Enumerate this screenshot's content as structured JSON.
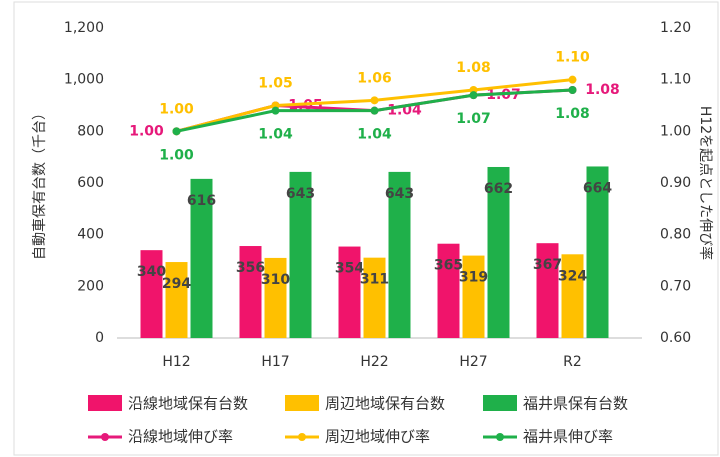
{
  "chart_data": {
    "type": "bar",
    "ylabel": "自動車保有台数（千台）",
    "y2label": "H12を起点とした伸び率",
    "categories": [
      "H12",
      "H17",
      "H22",
      "H27",
      "R2"
    ],
    "ylim": [
      0,
      1200
    ],
    "yticks": [
      0,
      200,
      400,
      600,
      800,
      {
        "value": 1000,
        "label": "1,000"
      },
      {
        "value": 1200,
        "label": "1,200"
      }
    ],
    "y2lim": [
      0.6,
      1.2
    ],
    "y2ticks": [
      {
        "value": 0.6,
        "label": "0.60"
      },
      {
        "value": 0.7,
        "label": "0.70"
      },
      {
        "value": 0.8,
        "label": "0.80"
      },
      {
        "value": 0.9,
        "label": "0.90"
      },
      {
        "value": 1.0,
        "label": "1.00"
      },
      {
        "value": 1.1,
        "label": "1.10"
      },
      {
        "value": 1.2,
        "label": "1.20"
      }
    ],
    "series": [
      {
        "name": "沿線地域保有台数",
        "type": "bar",
        "color": "#f0146b",
        "values": [
          340,
          356,
          354,
          365,
          367
        ]
      },
      {
        "name": "周辺地域保有台数",
        "type": "bar",
        "color": "#ffc000",
        "values": [
          294,
          310,
          311,
          319,
          324
        ]
      },
      {
        "name": "福井県保有台数",
        "type": "bar",
        "color": "#1fb04a",
        "values": [
          616,
          643,
          643,
          662,
          664
        ]
      },
      {
        "name": "沿線地域伸び率",
        "type": "line",
        "axis": "y2",
        "color": "#e6197a",
        "values": [
          1.0,
          1.05,
          1.04,
          1.07,
          1.08
        ],
        "value_labels": [
          "1.00",
          "1.05",
          "1.04",
          "1.07",
          "1.08"
        ]
      },
      {
        "name": "周辺地域伸び率",
        "type": "line",
        "axis": "y2",
        "color": "#ffc000",
        "values": [
          1.0,
          1.05,
          1.06,
          1.08,
          1.1
        ],
        "value_labels": [
          "1.00",
          "1.05",
          "1.06",
          "1.08",
          "1.10"
        ]
      },
      {
        "name": "福井県伸び率",
        "type": "line",
        "axis": "y2",
        "color": "#1fb04a",
        "values": [
          1.0,
          1.04,
          1.04,
          1.07,
          1.08
        ],
        "value_labels": [
          "1.00",
          "1.04",
          "1.04",
          "1.07",
          "1.08"
        ]
      }
    ]
  }
}
